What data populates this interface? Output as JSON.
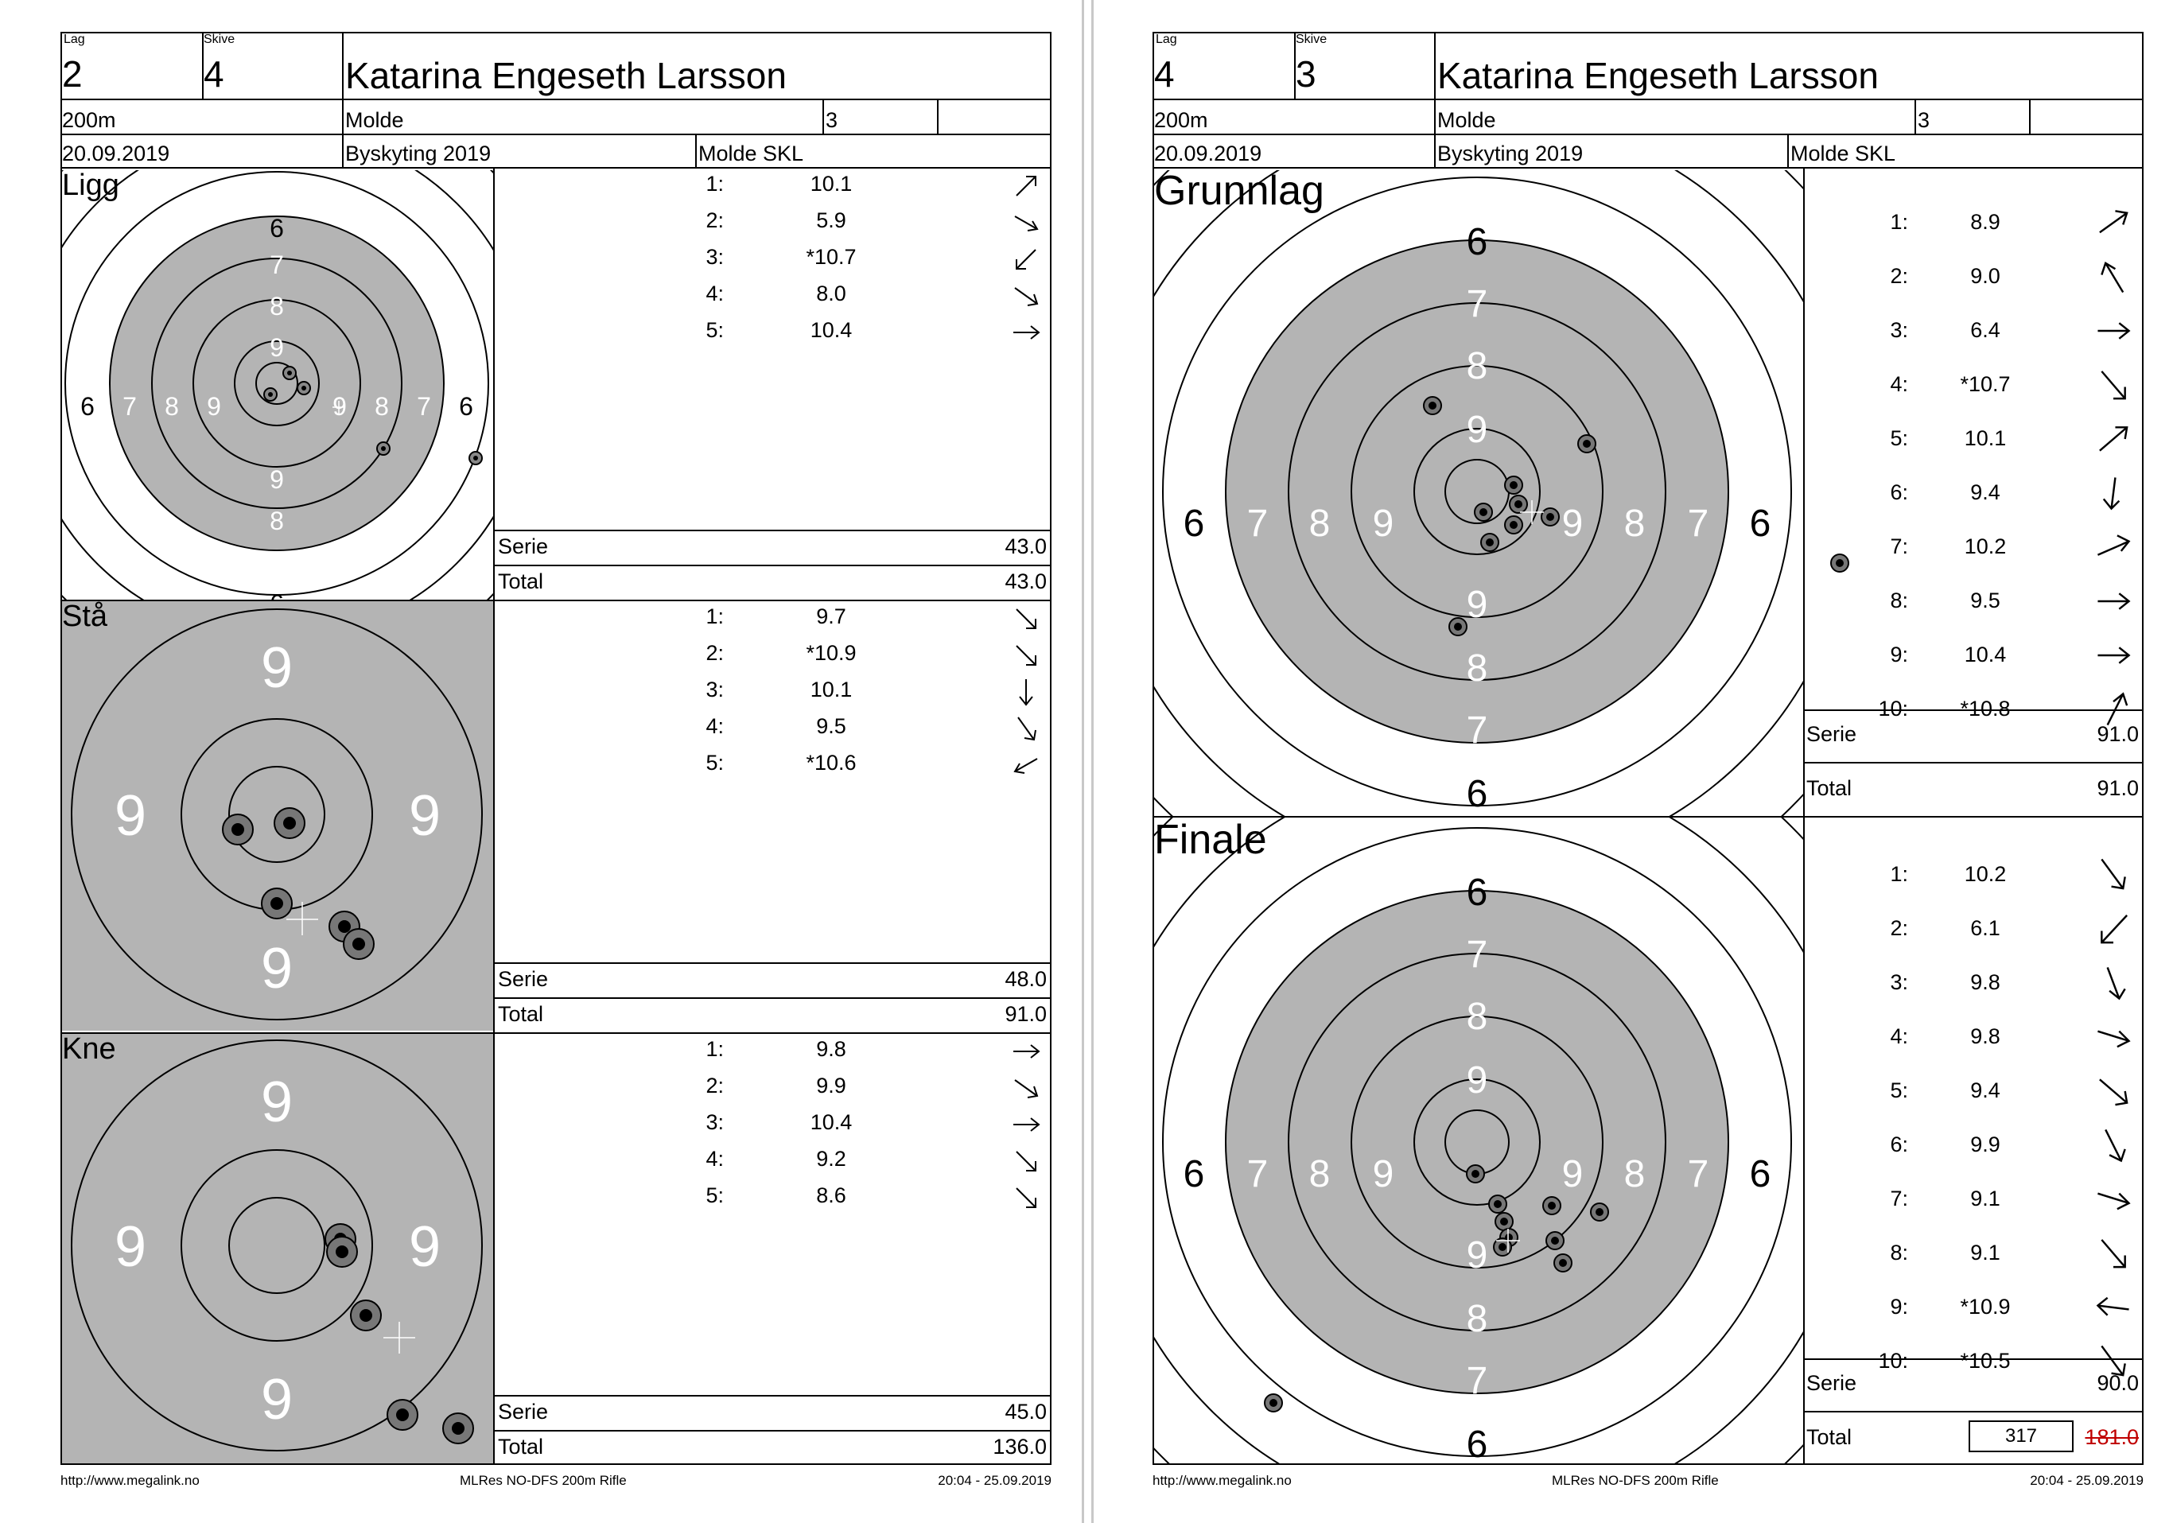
{
  "left": {
    "lag_label": "Lag",
    "lag": "2",
    "skive_label": "Skive",
    "skive": "4",
    "name": "Katarina Engeseth Larsson",
    "distance": "200m",
    "club": "Molde",
    "cls": "3",
    "date": "20.09.2019",
    "event": "Byskyting 2019",
    "organizer": "Molde SKL",
    "sections": [
      {
        "title": "Ligg",
        "shots": [
          {
            "n": "1:",
            "v": "10.1",
            "dir": "up-right"
          },
          {
            "n": "2:",
            "v": "5.9",
            "dir": "down-right"
          },
          {
            "n": "3:",
            "v": "*10.7",
            "dir": "down-left"
          },
          {
            "n": "4:",
            "v": "8.0",
            "dir": "down-right"
          },
          {
            "n": "5:",
            "v": "10.4",
            "dir": "right"
          }
        ],
        "serie_label": "Serie",
        "serie": "43.0",
        "total_label": "Total",
        "total": "43.0"
      },
      {
        "title": "Stå",
        "shots": [
          {
            "n": "1:",
            "v": "9.7",
            "dir": "down-right"
          },
          {
            "n": "2:",
            "v": "*10.9",
            "dir": "down-right"
          },
          {
            "n": "3:",
            "v": "10.1",
            "dir": "down"
          },
          {
            "n": "4:",
            "v": "9.5",
            "dir": "down-right"
          },
          {
            "n": "5:",
            "v": "*10.6",
            "dir": "down-left"
          }
        ],
        "serie_label": "Serie",
        "serie": "48.0",
        "total_label": "Total",
        "total": "91.0"
      },
      {
        "title": "Kne",
        "shots": [
          {
            "n": "1:",
            "v": "9.8",
            "dir": "right"
          },
          {
            "n": "2:",
            "v": "9.9",
            "dir": "down-right"
          },
          {
            "n": "3:",
            "v": "10.4",
            "dir": "right"
          },
          {
            "n": "4:",
            "v": "9.2",
            "dir": "down-right"
          },
          {
            "n": "5:",
            "v": "8.6",
            "dir": "down-right"
          }
        ],
        "serie_label": "Serie",
        "serie": "45.0",
        "total_label": "Total",
        "total": "136.0"
      }
    ],
    "target_labels": {
      "six": "6",
      "seven": "7",
      "eight": "8",
      "nine": "9"
    },
    "footer_url": "http://www.megalink.no",
    "footer_app": "MLRes NO-DFS 200m Rifle",
    "footer_time": "20:04 - 25.09.2019"
  },
  "right": {
    "lag_label": "Lag",
    "lag": "4",
    "skive_label": "Skive",
    "skive": "3",
    "name": "Katarina Engeseth Larsson",
    "distance": "200m",
    "club": "Molde",
    "cls": "3",
    "date": "20.09.2019",
    "event": "Byskyting 2019",
    "organizer": "Molde SKL",
    "sections": [
      {
        "title": "Grunnlag",
        "shots": [
          {
            "n": "1:",
            "v": "8.9",
            "dir": "up-right"
          },
          {
            "n": "2:",
            "v": "9.0",
            "dir": "up-left"
          },
          {
            "n": "3:",
            "v": "6.4",
            "dir": "right"
          },
          {
            "n": "4:",
            "v": "*10.7",
            "dir": "down-right"
          },
          {
            "n": "5:",
            "v": "10.1",
            "dir": "up-right"
          },
          {
            "n": "6:",
            "v": "9.4",
            "dir": "down"
          },
          {
            "n": "7:",
            "v": "10.2",
            "dir": "up-right"
          },
          {
            "n": "8:",
            "v": "9.5",
            "dir": "right"
          },
          {
            "n": "9:",
            "v": "10.4",
            "dir": "right"
          },
          {
            "n": "10:",
            "v": "*10.8",
            "dir": "up-right"
          }
        ],
        "serie_label": "Serie",
        "serie": "91.0",
        "total_label": "Total",
        "total": "91.0"
      },
      {
        "title": "Finale",
        "shots": [
          {
            "n": "1:",
            "v": "10.2",
            "dir": "down-right"
          },
          {
            "n": "2:",
            "v": "6.1",
            "dir": "down-left"
          },
          {
            "n": "3:",
            "v": "9.8",
            "dir": "down-right"
          },
          {
            "n": "4:",
            "v": "9.8",
            "dir": "right"
          },
          {
            "n": "5:",
            "v": "9.4",
            "dir": "down-right"
          },
          {
            "n": "6:",
            "v": "9.9",
            "dir": "down-right"
          },
          {
            "n": "7:",
            "v": "9.1",
            "dir": "right"
          },
          {
            "n": "8:",
            "v": "9.1",
            "dir": "down-right"
          },
          {
            "n": "9:",
            "v": "*10.9",
            "dir": "left"
          },
          {
            "n": "10:",
            "v": "*10.5",
            "dir": "down-right"
          }
        ],
        "serie_label": "Serie",
        "serie": "90.0",
        "total_label": "Total",
        "total_box": "317",
        "total_struck": "181.0"
      }
    ],
    "target_labels": {
      "six": "6",
      "seven": "7",
      "eight": "8",
      "nine": "9"
    },
    "footer_url": "http://www.megalink.no",
    "footer_app": "MLRes NO-DFS 200m Rifle",
    "footer_time": "20:04 - 25.09.2019"
  }
}
